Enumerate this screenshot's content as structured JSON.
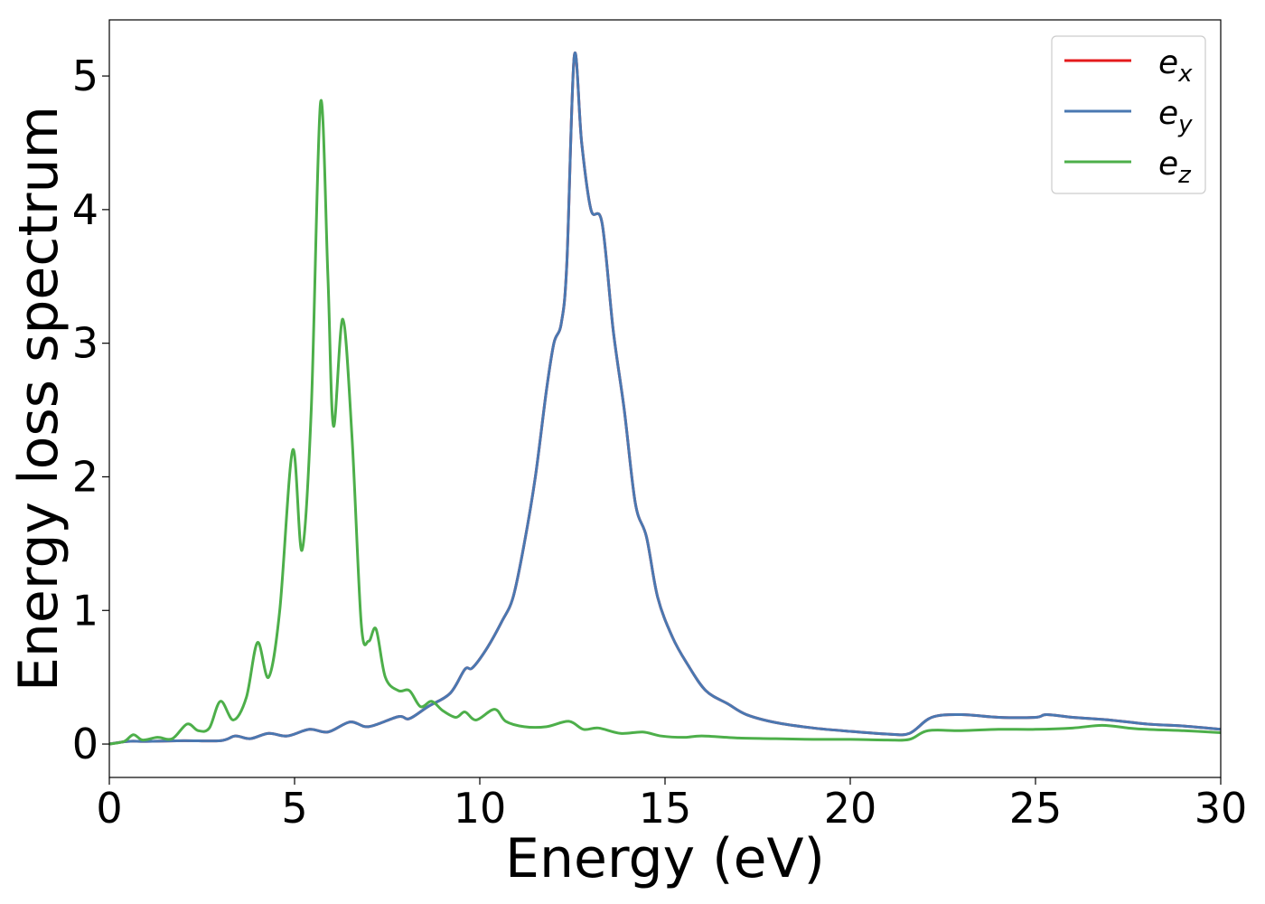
{
  "chart_data": {
    "type": "line",
    "title": "",
    "xlabel": "Energy (eV)",
    "ylabel": "Energy loss spectrum",
    "xlim": [
      0,
      30
    ],
    "ylim": [
      -0.25,
      5.42
    ],
    "xticks": [
      0,
      5,
      10,
      15,
      20,
      25,
      30
    ],
    "yticks": [
      0,
      1,
      2,
      3,
      4,
      5
    ],
    "grid": false,
    "legend_position": "top-right",
    "series": [
      {
        "name": "e_x",
        "label_base": "e",
        "label_sub": "x",
        "color": "#e41a1c",
        "points": [
          [
            0,
            0.0
          ],
          [
            0.5,
            0.02
          ],
          [
            1,
            0.02
          ],
          [
            2,
            0.025
          ],
          [
            3,
            0.025
          ],
          [
            3.4,
            0.06
          ],
          [
            3.8,
            0.04
          ],
          [
            4.3,
            0.08
          ],
          [
            4.8,
            0.06
          ],
          [
            5.4,
            0.11
          ],
          [
            5.9,
            0.09
          ],
          [
            6.5,
            0.165
          ],
          [
            7,
            0.13
          ],
          [
            7.8,
            0.205
          ],
          [
            8.1,
            0.19
          ],
          [
            8.6,
            0.28
          ],
          [
            9.2,
            0.38
          ],
          [
            9.6,
            0.56
          ],
          [
            9.8,
            0.57
          ],
          [
            10.2,
            0.72
          ],
          [
            10.6,
            0.92
          ],
          [
            10.9,
            1.1
          ],
          [
            11.2,
            1.5
          ],
          [
            11.5,
            2.0
          ],
          [
            11.8,
            2.65
          ],
          [
            12.0,
            3.0
          ],
          [
            12.2,
            3.15
          ],
          [
            12.35,
            3.6
          ],
          [
            12.55,
            5.15
          ],
          [
            12.75,
            4.5
          ],
          [
            13.0,
            4.0
          ],
          [
            13.3,
            3.9
          ],
          [
            13.6,
            3.1
          ],
          [
            13.9,
            2.5
          ],
          [
            14.2,
            1.8
          ],
          [
            14.5,
            1.55
          ],
          [
            14.8,
            1.1
          ],
          [
            15.2,
            0.8
          ],
          [
            15.6,
            0.6
          ],
          [
            16.1,
            0.4
          ],
          [
            16.7,
            0.3
          ],
          [
            17.2,
            0.22
          ],
          [
            18,
            0.16
          ],
          [
            19,
            0.12
          ],
          [
            20,
            0.095
          ],
          [
            21,
            0.075
          ],
          [
            21.6,
            0.08
          ],
          [
            22.2,
            0.2
          ],
          [
            23,
            0.22
          ],
          [
            24,
            0.2
          ],
          [
            25,
            0.2
          ],
          [
            25.3,
            0.22
          ],
          [
            26,
            0.2
          ],
          [
            27,
            0.18
          ],
          [
            28,
            0.15
          ],
          [
            29,
            0.135
          ],
          [
            30,
            0.11
          ]
        ]
      },
      {
        "name": "e_y",
        "label_base": "e",
        "label_sub": "y",
        "color": "#4a78b1",
        "points": [
          [
            0,
            0.0
          ],
          [
            0.5,
            0.02
          ],
          [
            1,
            0.02
          ],
          [
            2,
            0.025
          ],
          [
            3,
            0.025
          ],
          [
            3.4,
            0.06
          ],
          [
            3.8,
            0.04
          ],
          [
            4.3,
            0.08
          ],
          [
            4.8,
            0.06
          ],
          [
            5.4,
            0.11
          ],
          [
            5.9,
            0.09
          ],
          [
            6.5,
            0.165
          ],
          [
            7,
            0.13
          ],
          [
            7.8,
            0.205
          ],
          [
            8.1,
            0.19
          ],
          [
            8.6,
            0.28
          ],
          [
            9.2,
            0.38
          ],
          [
            9.6,
            0.56
          ],
          [
            9.8,
            0.57
          ],
          [
            10.2,
            0.72
          ],
          [
            10.6,
            0.92
          ],
          [
            10.9,
            1.1
          ],
          [
            11.2,
            1.5
          ],
          [
            11.5,
            2.0
          ],
          [
            11.8,
            2.65
          ],
          [
            12.0,
            3.0
          ],
          [
            12.2,
            3.15
          ],
          [
            12.35,
            3.6
          ],
          [
            12.55,
            5.15
          ],
          [
            12.75,
            4.5
          ],
          [
            13.0,
            4.0
          ],
          [
            13.3,
            3.9
          ],
          [
            13.6,
            3.1
          ],
          [
            13.9,
            2.5
          ],
          [
            14.2,
            1.8
          ],
          [
            14.5,
            1.55
          ],
          [
            14.8,
            1.1
          ],
          [
            15.2,
            0.8
          ],
          [
            15.6,
            0.6
          ],
          [
            16.1,
            0.4
          ],
          [
            16.7,
            0.3
          ],
          [
            17.2,
            0.22
          ],
          [
            18,
            0.16
          ],
          [
            19,
            0.12
          ],
          [
            20,
            0.095
          ],
          [
            21,
            0.075
          ],
          [
            21.6,
            0.08
          ],
          [
            22.2,
            0.2
          ],
          [
            23,
            0.22
          ],
          [
            24,
            0.2
          ],
          [
            25,
            0.2
          ],
          [
            25.3,
            0.22
          ],
          [
            26,
            0.2
          ],
          [
            27,
            0.18
          ],
          [
            28,
            0.15
          ],
          [
            29,
            0.135
          ],
          [
            30,
            0.11
          ]
        ]
      },
      {
        "name": "e_z",
        "label_base": "e",
        "label_sub": "z",
        "color": "#4daf4a",
        "points": [
          [
            0,
            0.0
          ],
          [
            0.4,
            0.02
          ],
          [
            0.65,
            0.07
          ],
          [
            0.9,
            0.03
          ],
          [
            1.3,
            0.05
          ],
          [
            1.7,
            0.04
          ],
          [
            2.1,
            0.15
          ],
          [
            2.4,
            0.1
          ],
          [
            2.7,
            0.12
          ],
          [
            3.0,
            0.32
          ],
          [
            3.35,
            0.18
          ],
          [
            3.7,
            0.35
          ],
          [
            4.0,
            0.76
          ],
          [
            4.3,
            0.5
          ],
          [
            4.6,
            1.0
          ],
          [
            4.95,
            2.2
          ],
          [
            5.2,
            1.45
          ],
          [
            5.45,
            2.5
          ],
          [
            5.7,
            4.8
          ],
          [
            5.9,
            3.5
          ],
          [
            6.05,
            2.38
          ],
          [
            6.3,
            3.18
          ],
          [
            6.55,
            2.3
          ],
          [
            6.8,
            0.9
          ],
          [
            7.0,
            0.77
          ],
          [
            7.2,
            0.86
          ],
          [
            7.45,
            0.5
          ],
          [
            7.8,
            0.4
          ],
          [
            8.1,
            0.4
          ],
          [
            8.4,
            0.28
          ],
          [
            8.7,
            0.32
          ],
          [
            9.0,
            0.25
          ],
          [
            9.35,
            0.2
          ],
          [
            9.6,
            0.24
          ],
          [
            9.9,
            0.18
          ],
          [
            10.4,
            0.26
          ],
          [
            10.7,
            0.17
          ],
          [
            11.2,
            0.13
          ],
          [
            11.8,
            0.13
          ],
          [
            12.4,
            0.17
          ],
          [
            12.8,
            0.11
          ],
          [
            13.2,
            0.12
          ],
          [
            13.8,
            0.08
          ],
          [
            14.4,
            0.09
          ],
          [
            14.9,
            0.06
          ],
          [
            15.5,
            0.05
          ],
          [
            16.0,
            0.06
          ],
          [
            17,
            0.045
          ],
          [
            18,
            0.04
          ],
          [
            19,
            0.035
          ],
          [
            20,
            0.035
          ],
          [
            21,
            0.03
          ],
          [
            21.6,
            0.035
          ],
          [
            22.1,
            0.1
          ],
          [
            23,
            0.1
          ],
          [
            24,
            0.11
          ],
          [
            25,
            0.11
          ],
          [
            26,
            0.12
          ],
          [
            26.8,
            0.14
          ],
          [
            27.5,
            0.12
          ],
          [
            28,
            0.11
          ],
          [
            29,
            0.1
          ],
          [
            30,
            0.085
          ]
        ]
      }
    ]
  }
}
